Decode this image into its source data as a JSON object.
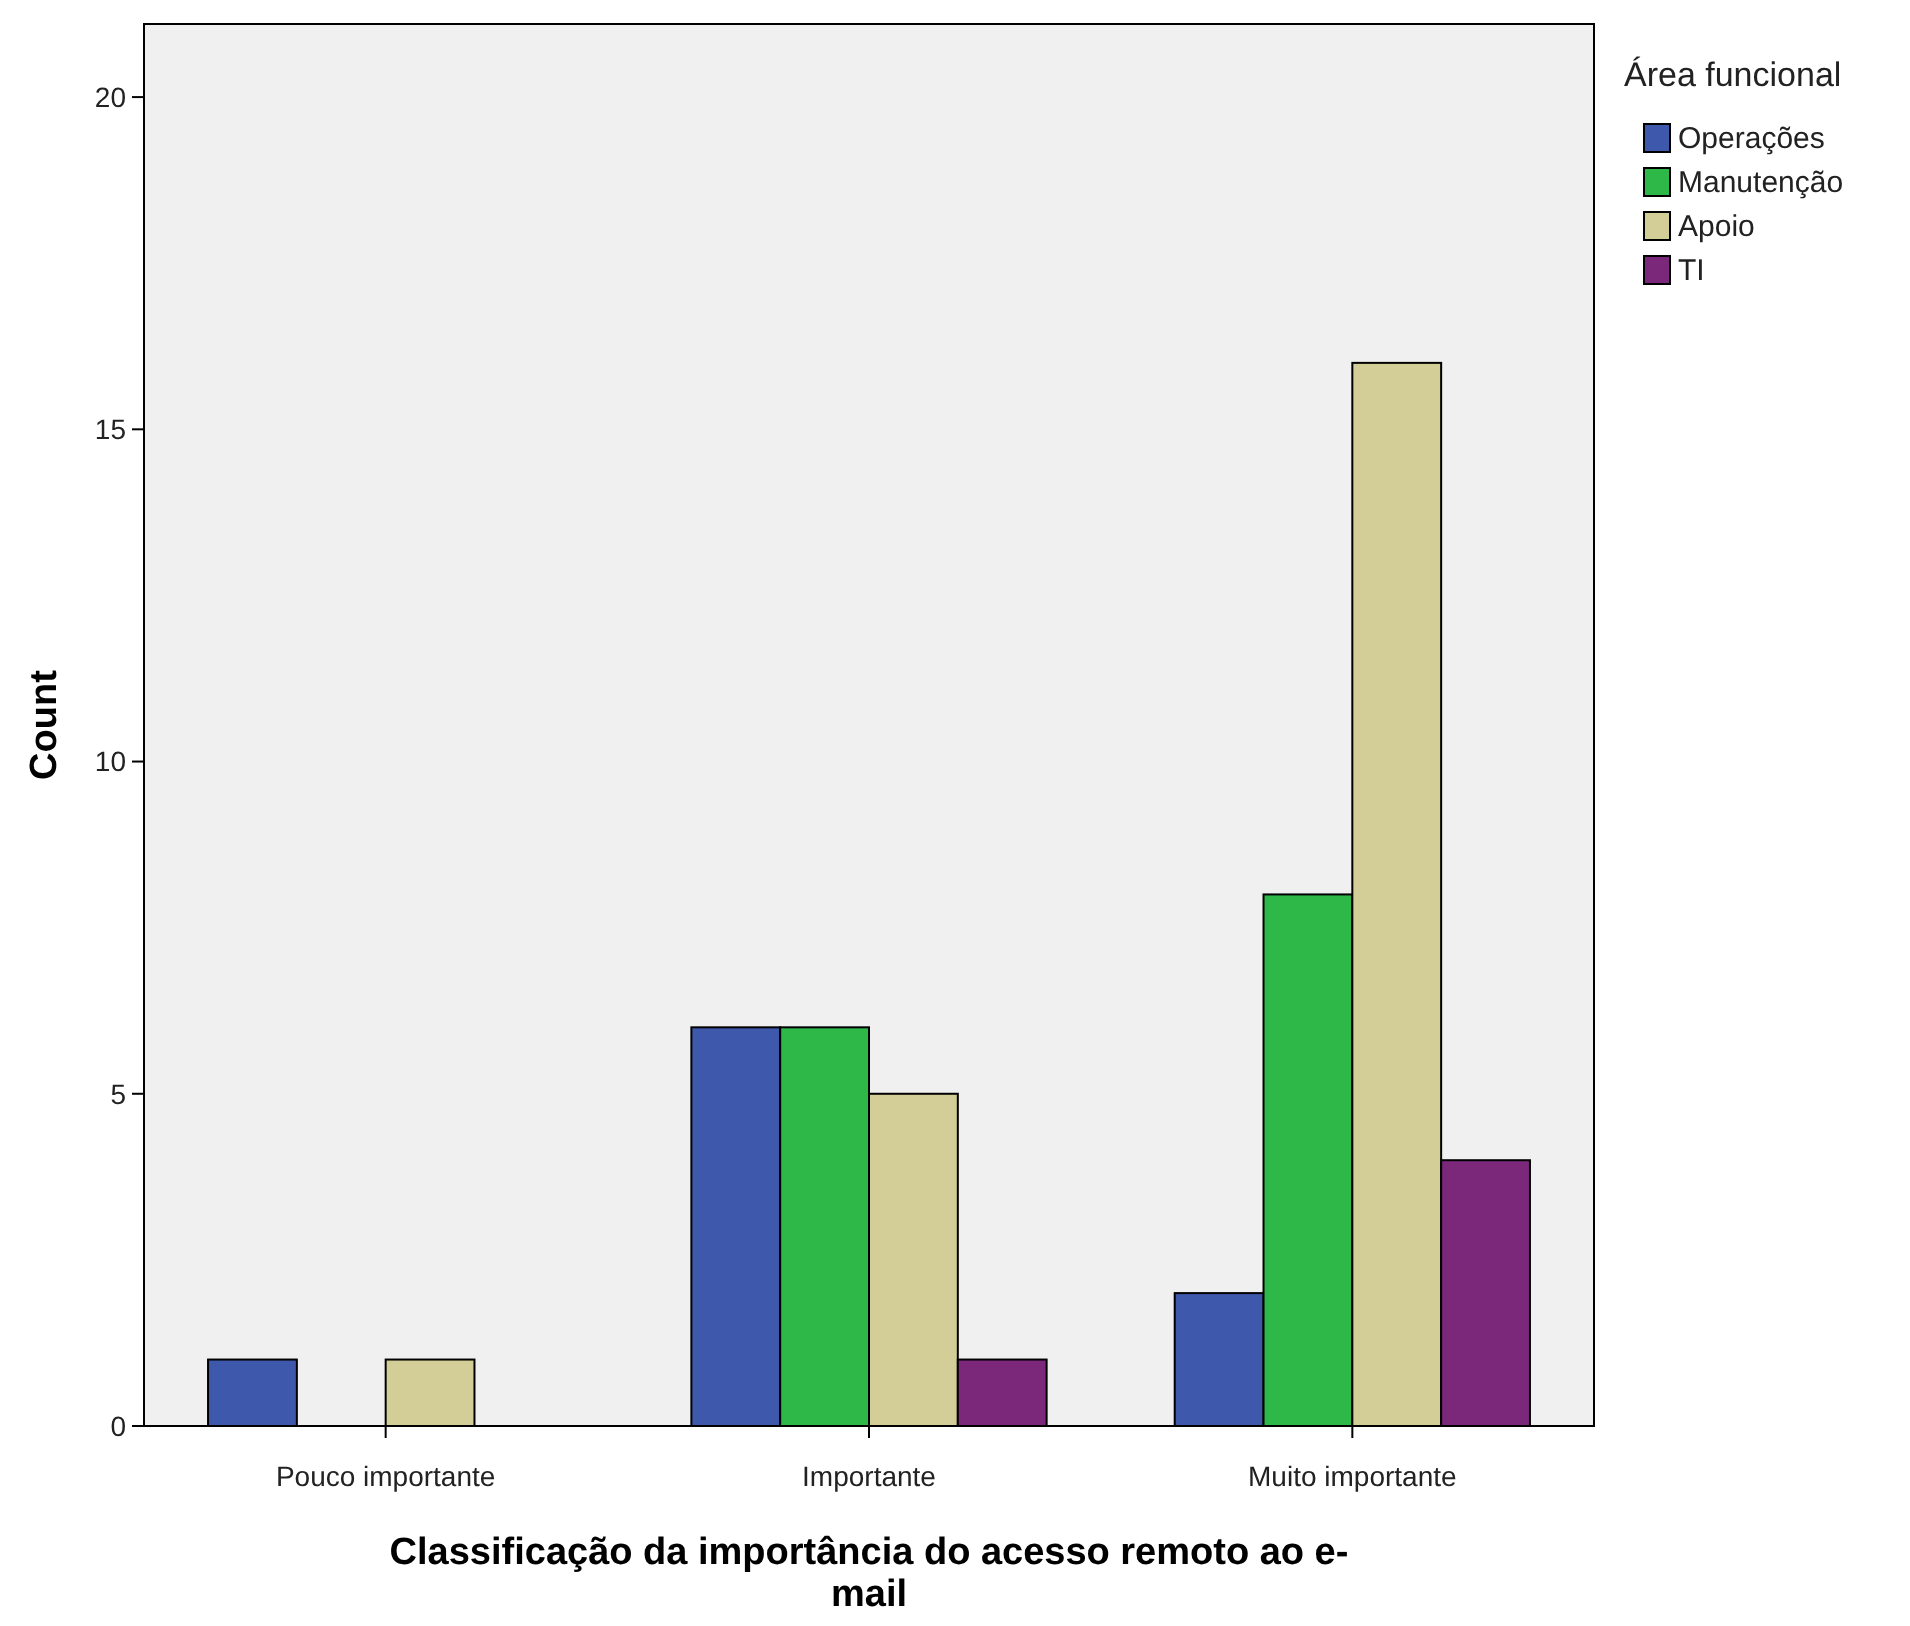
{
  "chart_data": {
    "type": "bar",
    "xlabel": "Classificação da importância do acesso remoto ao e-mail",
    "ylabel": "Count",
    "legend_title": "Área funcional",
    "categories": [
      "Pouco importante",
      "Importante",
      "Muito importante"
    ],
    "series": [
      {
        "name": "Operações",
        "color": "#3e58ac",
        "values": [
          1,
          6,
          2
        ]
      },
      {
        "name": "Manutenção",
        "color": "#2eb848",
        "values": [
          0,
          6,
          8
        ]
      },
      {
        "name": "Apoio",
        "color": "#d3ce97",
        "values": [
          1,
          5,
          16
        ]
      },
      {
        "name": "TI",
        "color": "#7b287b",
        "values": [
          0,
          1,
          4
        ]
      }
    ],
    "ylim": [
      0,
      21.1
    ],
    "yticks": [
      0,
      5,
      10,
      15,
      20
    ],
    "grid": false,
    "legend": "top right"
  }
}
